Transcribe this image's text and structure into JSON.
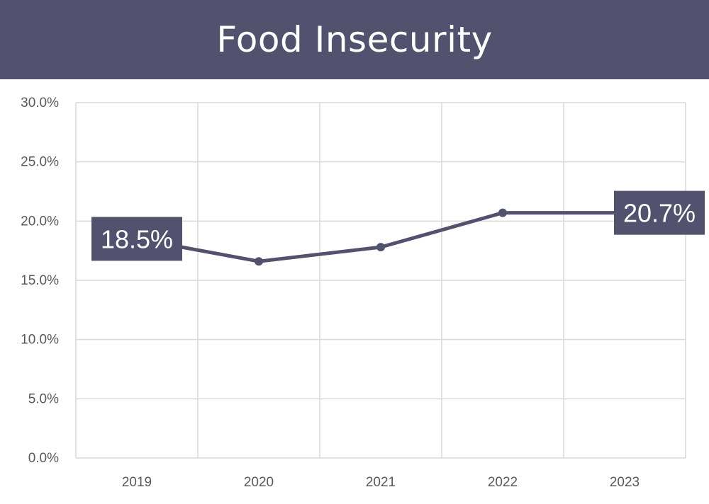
{
  "header": {
    "title": "Food Insecurity"
  },
  "chart_data": {
    "type": "line",
    "title": "Food Insecurity",
    "xlabel": "",
    "ylabel": "",
    "categories": [
      "2019",
      "2020",
      "2021",
      "2022",
      "2023"
    ],
    "series": [
      {
        "values": [
          18.5,
          16.6,
          17.8,
          20.7,
          20.7
        ]
      }
    ],
    "ylim": [
      0,
      30
    ],
    "yticks": [
      "0.0%",
      "5.0%",
      "10.0%",
      "15.0%",
      "20.0%",
      "25.0%",
      "30.0%"
    ],
    "data_labels": [
      {
        "index": 0,
        "text": "18.5%"
      },
      {
        "index": 4,
        "text": "20.7%"
      }
    ],
    "grid": true,
    "legend": "none",
    "colors": {
      "line": "#53526e",
      "label_bg": "#53526e",
      "grid": "#d9d9d9",
      "tick_text": "#595959"
    }
  }
}
